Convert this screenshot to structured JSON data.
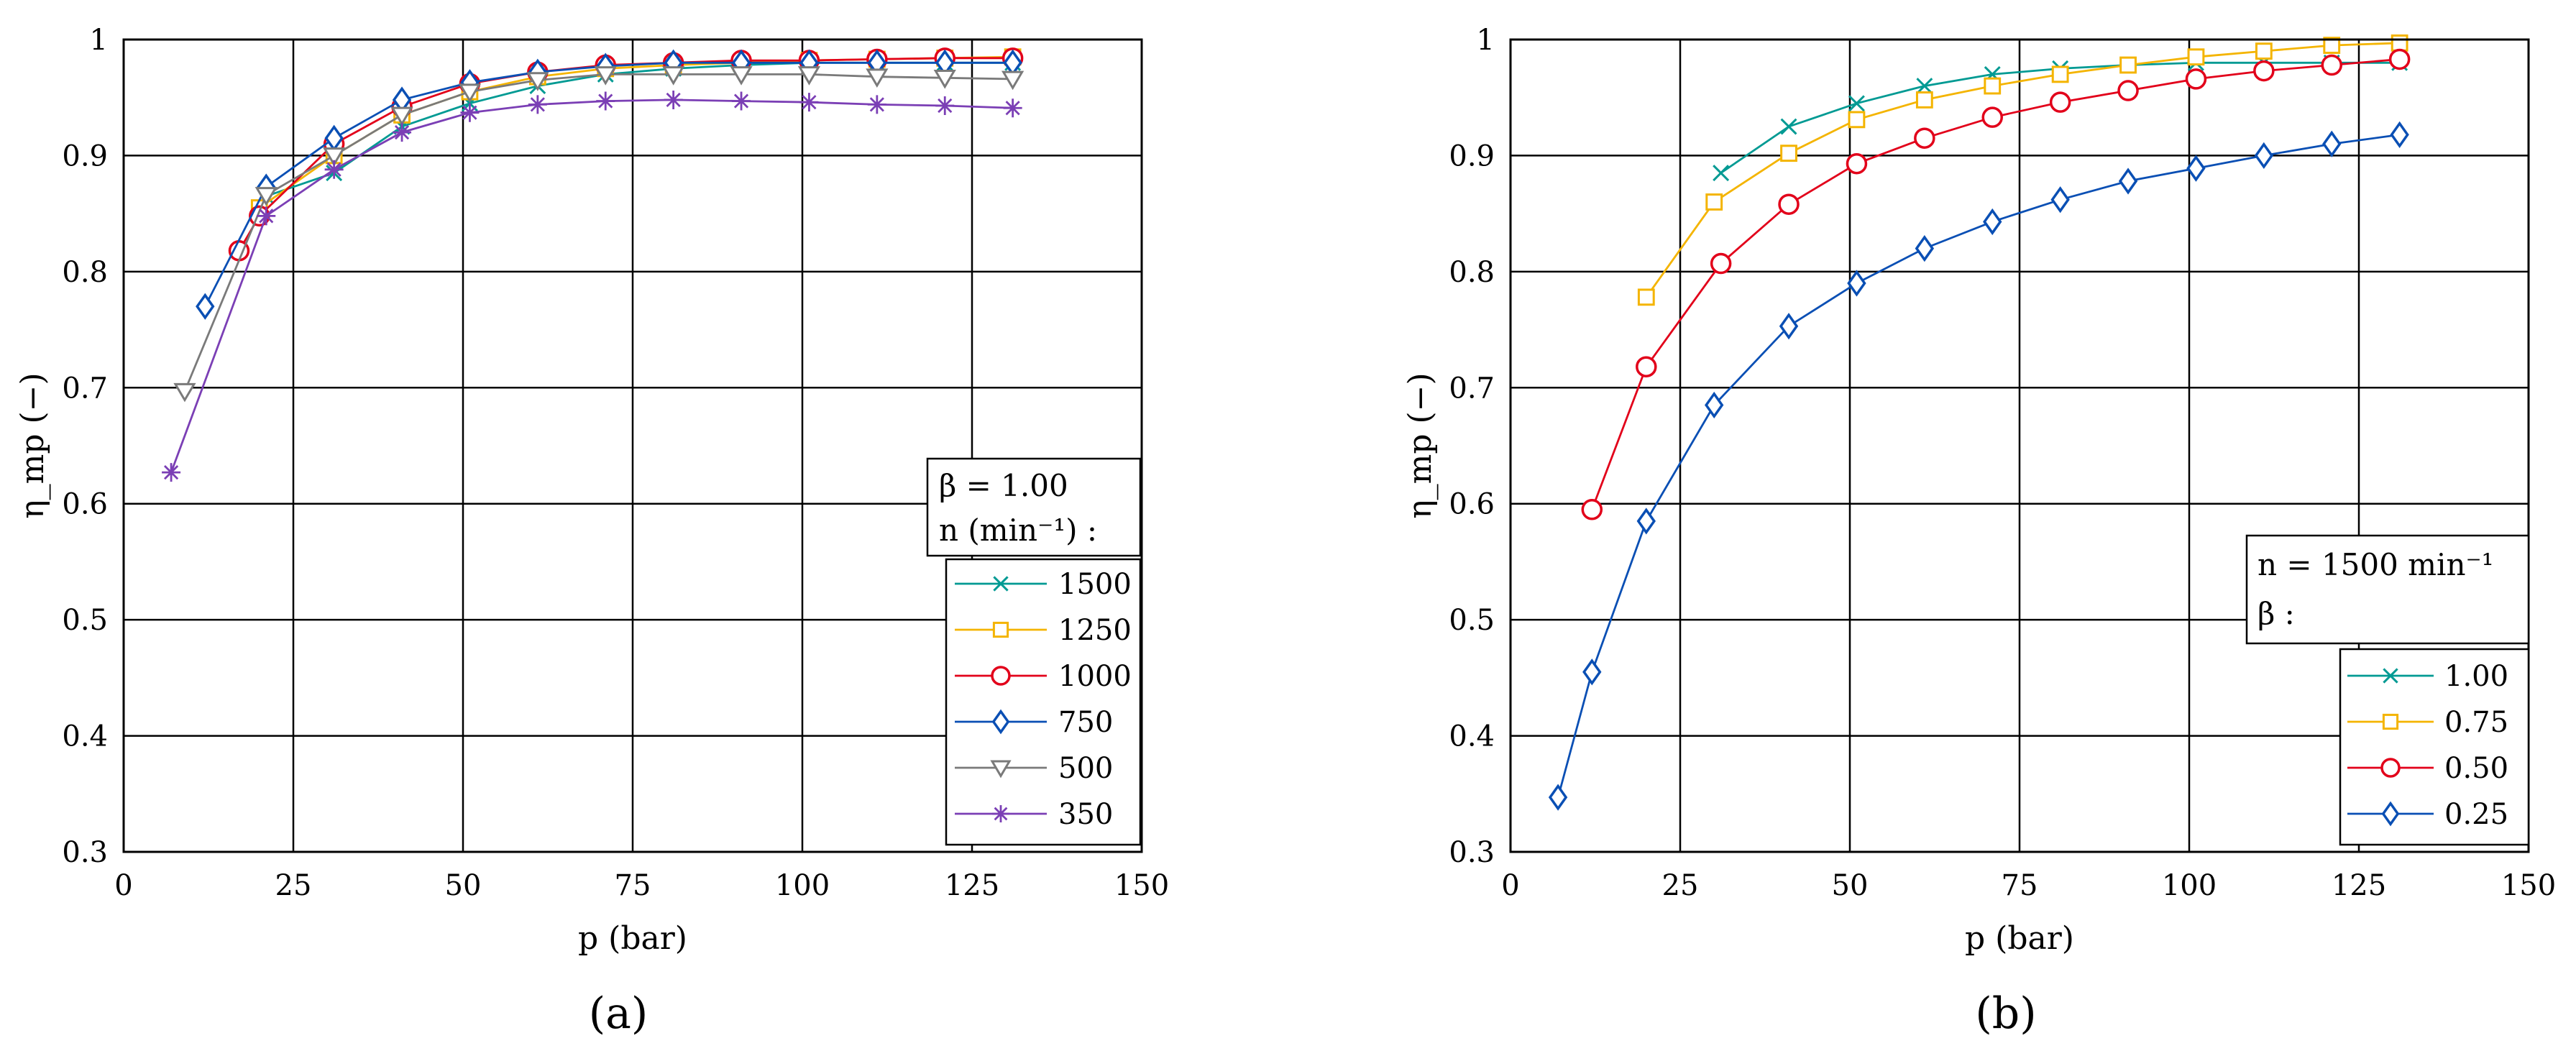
{
  "chart_data": [
    {
      "type": "line",
      "panel_label": "(a)",
      "xlabel": "p (bar)",
      "ylabel": "η_mp (−)",
      "xlim": [
        0,
        150
      ],
      "ylim": [
        0.3,
        1.0
      ],
      "xticks": [
        "0",
        "25",
        "50",
        "75",
        "100",
        "125",
        "150"
      ],
      "yticks": [
        "0.3",
        "0.4",
        "0.5",
        "0.6",
        "0.7",
        "0.8",
        "0.9",
        "1"
      ],
      "grid": true,
      "legend_title_line1": "β = 1.00",
      "legend_title_line2": "n (min⁻¹) :",
      "legend_position": "right",
      "series": [
        {
          "name": "1500",
          "color": "#009a93",
          "marker": "x",
          "x": [
            21,
            31,
            41,
            51,
            61,
            71,
            81,
            91,
            101,
            111,
            121,
            131
          ],
          "y": [
            0.865,
            0.885,
            0.925,
            0.945,
            0.96,
            0.97,
            0.975,
            0.978,
            0.98,
            0.98,
            0.98,
            0.98
          ]
        },
        {
          "name": "1250",
          "color": "#f4b400",
          "marker": "square",
          "x": [
            20,
            31,
            41,
            51,
            61,
            71,
            81,
            91,
            101,
            111,
            121,
            131
          ],
          "y": [
            0.855,
            0.9,
            0.935,
            0.955,
            0.968,
            0.975,
            0.978,
            0.98,
            0.982,
            0.983,
            0.984,
            0.985
          ]
        },
        {
          "name": "1000",
          "color": "#e2001a",
          "marker": "circle",
          "x": [
            17,
            20,
            31,
            41,
            51,
            61,
            71,
            81,
            91,
            101,
            111,
            121,
            131
          ],
          "y": [
            0.818,
            0.848,
            0.91,
            0.942,
            0.962,
            0.972,
            0.978,
            0.98,
            0.982,
            0.982,
            0.983,
            0.984,
            0.984
          ]
        },
        {
          "name": "750",
          "color": "#0a4fb4",
          "marker": "diamond",
          "x": [
            12,
            21,
            31,
            41,
            51,
            61,
            71,
            81,
            91,
            101,
            111,
            121,
            131
          ],
          "y": [
            0.77,
            0.873,
            0.915,
            0.948,
            0.963,
            0.972,
            0.977,
            0.98,
            0.98,
            0.98,
            0.98,
            0.98,
            0.98
          ]
        },
        {
          "name": "500",
          "color": "#7a7a7a",
          "marker": "triangle-down",
          "x": [
            9,
            21,
            31,
            41,
            51,
            61,
            71,
            81,
            91,
            101,
            111,
            121,
            131
          ],
          "y": [
            0.697,
            0.866,
            0.9,
            0.935,
            0.955,
            0.965,
            0.97,
            0.97,
            0.97,
            0.97,
            0.968,
            0.967,
            0.966
          ]
        },
        {
          "name": "350",
          "color": "#7b3fb5",
          "marker": "asterisk",
          "x": [
            7,
            21,
            31,
            41,
            51,
            61,
            71,
            81,
            91,
            101,
            111,
            121,
            131
          ],
          "y": [
            0.627,
            0.848,
            0.888,
            0.92,
            0.937,
            0.944,
            0.947,
            0.948,
            0.947,
            0.946,
            0.944,
            0.943,
            0.941
          ]
        }
      ]
    },
    {
      "type": "line",
      "panel_label": "(b)",
      "xlabel": "p (bar)",
      "ylabel": "η_mp (−)",
      "xlim": [
        0,
        150
      ],
      "ylim": [
        0.3,
        1.0
      ],
      "xticks": [
        "0",
        "25",
        "50",
        "75",
        "100",
        "125",
        "150"
      ],
      "yticks": [
        "0.3",
        "0.4",
        "0.5",
        "0.6",
        "0.7",
        "0.8",
        "0.9",
        "1"
      ],
      "grid": true,
      "legend_title_line1": "n = 1500 min⁻¹",
      "legend_title_line2": "β :",
      "legend_position": "bottom-right",
      "series": [
        {
          "name": "1.00",
          "color": "#009a93",
          "marker": "x",
          "x": [
            31,
            41,
            51,
            61,
            71,
            81,
            91,
            101,
            111,
            121,
            131
          ],
          "y": [
            0.885,
            0.925,
            0.945,
            0.96,
            0.97,
            0.975,
            0.978,
            0.98,
            0.98,
            0.98,
            0.98
          ]
        },
        {
          "name": "0.75",
          "color": "#f4b400",
          "marker": "square",
          "x": [
            20,
            30,
            41,
            51,
            61,
            71,
            81,
            91,
            101,
            111,
            121,
            131
          ],
          "y": [
            0.778,
            0.86,
            0.902,
            0.931,
            0.948,
            0.96,
            0.97,
            0.978,
            0.985,
            0.99,
            0.995,
            0.997
          ]
        },
        {
          "name": "0.50",
          "color": "#e2001a",
          "marker": "circle",
          "x": [
            12,
            20,
            31,
            41,
            51,
            61,
            71,
            81,
            91,
            101,
            111,
            121,
            131
          ],
          "y": [
            0.595,
            0.718,
            0.807,
            0.858,
            0.893,
            0.915,
            0.933,
            0.946,
            0.956,
            0.966,
            0.973,
            0.978,
            0.983
          ]
        },
        {
          "name": "0.25",
          "color": "#0a4fb4",
          "marker": "diamond",
          "x": [
            7,
            12,
            20,
            30,
            41,
            51,
            61,
            71,
            81,
            91,
            101,
            111,
            121,
            131
          ],
          "y": [
            0.347,
            0.455,
            0.585,
            0.685,
            0.753,
            0.79,
            0.82,
            0.843,
            0.862,
            0.878,
            0.889,
            0.9,
            0.91,
            0.918
          ]
        }
      ]
    }
  ]
}
